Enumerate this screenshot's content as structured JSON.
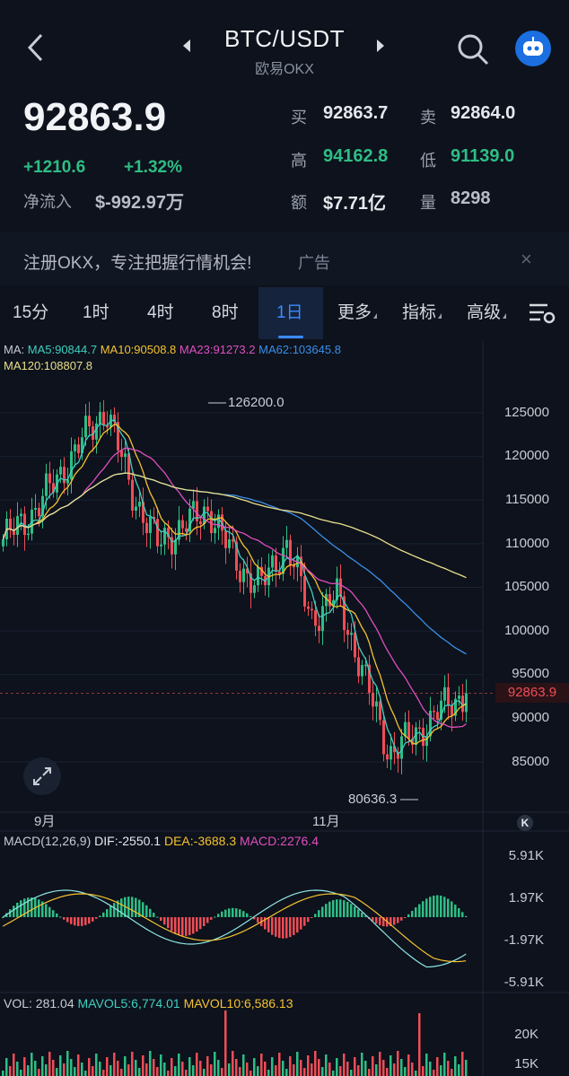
{
  "header": {
    "pair": "BTC/USDT",
    "exchange": "欧易OKX",
    "icons": {
      "back": "back-chevron-icon",
      "prev": "prev-arrow-icon",
      "next": "next-arrow-icon",
      "search": "search-icon",
      "avatar": "robot-avatar-icon"
    }
  },
  "ticker": {
    "last": "92863.9",
    "change": "+1210.6",
    "change_pct": "+1.32%",
    "inflow_label": "净流入",
    "inflow_value": "$-992.97万",
    "stats": {
      "buy_label": "买",
      "buy": "92863.7",
      "sell_label": "卖",
      "sell": "92864.0",
      "high_label": "高",
      "high": "94162.8",
      "low_label": "低",
      "low": "91139.0",
      "amount_label": "额",
      "amount": "$7.71亿",
      "volume_label": "量",
      "volume": "8298"
    }
  },
  "ad": {
    "text": "注册OKX，专注把握行情机会!",
    "tag": "广告",
    "close": "×"
  },
  "tabs": [
    {
      "label": "15分"
    },
    {
      "label": "1时"
    },
    {
      "label": "4时"
    },
    {
      "label": "8时"
    },
    {
      "label": "1日",
      "active": true
    },
    {
      "label": "更多"
    },
    {
      "label": "指标"
    },
    {
      "label": "高级"
    }
  ],
  "indicators": {
    "ma_title": "MA:",
    "ma5": "MA5:90844.7",
    "ma10": "MA10:90508.8",
    "ma23": "MA23:91273.2",
    "ma62": "MA62:103645.8",
    "ma120": "MA120:108807.8",
    "macd_title": "MACD(12,26,9)",
    "dif": "DIF:-2550.1",
    "dea": "DEA:-3688.3",
    "macd": "MACD:2276.4",
    "vol": "VOL: 281.04",
    "mavol5": "MAVOL5:6,774.01",
    "mavol10": "MAVOL10:6,586.13"
  },
  "colors": {
    "up": "#2fbd85",
    "down": "#ef4d56",
    "ma5": "#3fd0c0",
    "ma10": "#f5c230",
    "ma23": "#e14fc0",
    "ma62": "#3a8fe8",
    "ma120": "#eadf8a",
    "accent": "#3a8bff"
  },
  "price_axis": [
    "125000",
    "120000",
    "115000",
    "110000",
    "105000",
    "100000",
    "95000",
    "90000",
    "85000"
  ],
  "current_price_tag": "92863.9",
  "high_marker": "126200.0",
  "low_marker": "80636.3",
  "time_axis": [
    "9月",
    "11月"
  ],
  "macd_axis": [
    "5.91K",
    "1.97K",
    "-1.97K",
    "-5.91K"
  ],
  "vol_axis": [
    "20K",
    "15K"
  ],
  "k_button": "K",
  "chart_data": {
    "type": "line",
    "price_range": [
      80000,
      130000
    ],
    "approx_path": [
      110500,
      113000,
      117000,
      121500,
      125500,
      116000,
      110000,
      112000,
      114000,
      108000,
      105000,
      110000,
      101500,
      104000,
      95000,
      86000,
      88000,
      91000,
      92863.9
    ]
  }
}
